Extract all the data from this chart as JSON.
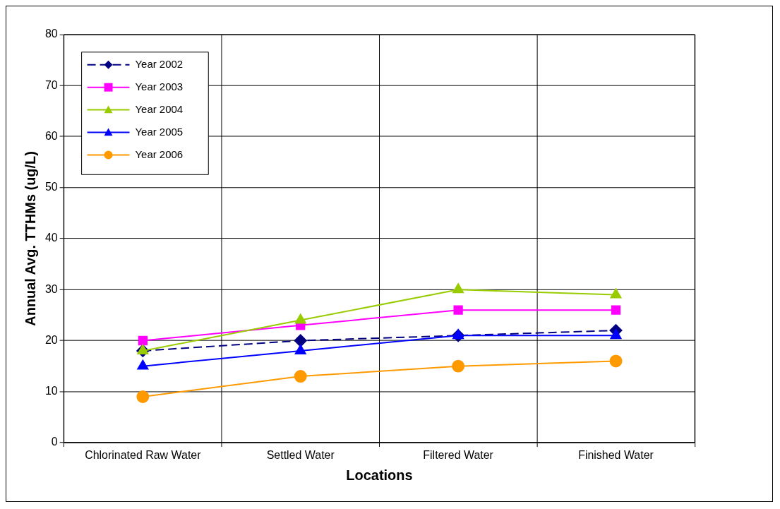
{
  "chart_data": {
    "type": "line",
    "xlabel": "Locations",
    "ylabel": "Annual Avg. TTHMs (ug/L)",
    "categories": [
      "Chlorinated Raw Water",
      "Settled Water",
      "Filtered Water",
      "Finished Water"
    ],
    "ylim": [
      0,
      80
    ],
    "yticks": [
      0,
      10,
      20,
      30,
      40,
      50,
      60,
      70,
      80
    ],
    "grid": true,
    "legend": "top left",
    "series": [
      {
        "name": "Year 2002",
        "color": "#000080",
        "marker": "diamond",
        "line_style": "dashed",
        "values": [
          18,
          20,
          21,
          22
        ]
      },
      {
        "name": "Year 2003",
        "color": "#ff00ff",
        "marker": "square",
        "line_style": "solid",
        "values": [
          20,
          23,
          26,
          26
        ]
      },
      {
        "name": "Year 2004",
        "color": "#99cc00",
        "marker": "triangle",
        "line_style": "solid",
        "values": [
          18,
          24,
          30,
          29
        ]
      },
      {
        "name": "Year 2005",
        "color": "#0000ff",
        "marker": "triangle",
        "line_style": "solid",
        "values": [
          15,
          18,
          21,
          21
        ]
      },
      {
        "name": "Year 2006",
        "color": "#ff9900",
        "marker": "circle",
        "line_style": "solid",
        "values": [
          9,
          13,
          15,
          16
        ]
      }
    ]
  }
}
